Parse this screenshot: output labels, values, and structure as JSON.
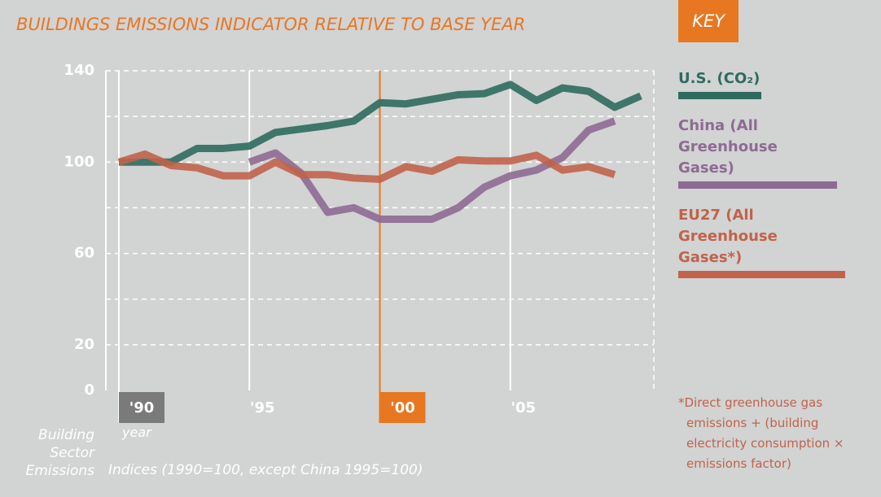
{
  "chart_data": {
    "type": "line",
    "title": "BUILDINGS EMISSIONS INDICATOR RELATIVE TO BASE YEAR",
    "legend_title": "KEY",
    "y_label": "Building Sector Emissions",
    "x_label": "year",
    "subtitle": "Indices (1990=100, except China 1995=100)",
    "note": "*Direct greenhouse gas emissions + (building electricity consumption × emissions factor)",
    "x": [
      1990,
      1991,
      1992,
      1993,
      1994,
      1995,
      1996,
      1997,
      1998,
      1999,
      2000,
      2001,
      2002,
      2003,
      2004,
      2005,
      2006,
      2007,
      2008,
      2009,
      2010
    ],
    "series": [
      {
        "name": "U.S. (CO₂)",
        "color": "#2e6b5e",
        "values": [
          100,
          100,
          100,
          106,
          106,
          107,
          113,
          114.5,
          116,
          118,
          126,
          125.5,
          127.5,
          129.5,
          130,
          134,
          127,
          132.5,
          131,
          124,
          129
        ]
      },
      {
        "name": "China (All Greenhouse Gases)",
        "color": "#8e6a94",
        "values": [
          null,
          null,
          null,
          null,
          null,
          100,
          104,
          95,
          78,
          80,
          75,
          75,
          75,
          80,
          89,
          94,
          96.5,
          102,
          114,
          118,
          null
        ]
      },
      {
        "name": "EU27 (All Greenhouse Gases*)",
        "color": "#c0634a",
        "values": [
          100,
          103.5,
          98.5,
          97.5,
          94,
          94,
          100,
          94.5,
          94.5,
          93,
          92.5,
          98,
          96,
          101,
          100.5,
          100.5,
          103,
          96.5,
          98,
          94.5,
          null
        ]
      }
    ],
    "xlim": [
      1989.5,
      2010.5
    ],
    "ylim": [
      0,
      140
    ],
    "yticks": [
      0,
      20,
      60,
      100,
      140
    ],
    "minor_yticks": [
      40,
      80,
      120
    ],
    "xticks": [
      {
        "value": 1990,
        "label": "'90"
      },
      {
        "value": 1995,
        "label": "'95"
      },
      {
        "value": 2000,
        "label": "'00"
      },
      {
        "value": 2005,
        "label": "'05"
      }
    ],
    "xtick_boxes": [
      "#7a7a7a",
      null,
      "#e87722",
      null
    ],
    "grid": true
  }
}
